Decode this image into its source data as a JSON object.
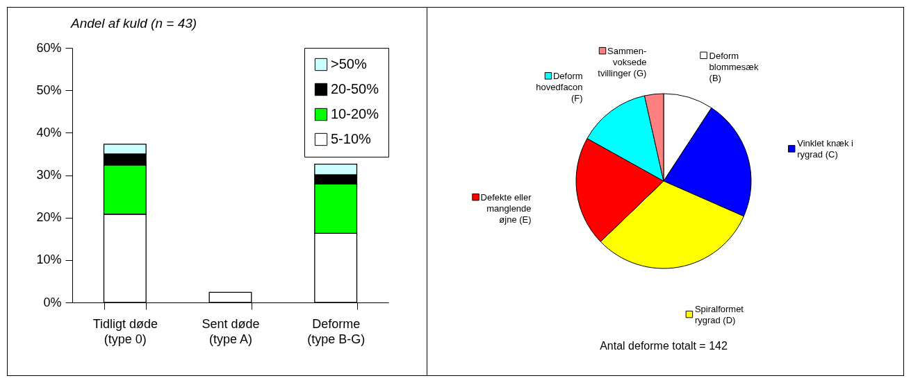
{
  "chart_data": [
    {
      "type": "bar",
      "title": "Andel af kuld (n = 43)",
      "stacked": true,
      "categories": [
        "Tidligt døde\n(type 0)",
        "Sent døde\n(type A)",
        "Deforme\n(type B-G)"
      ],
      "series": [
        {
          "name": "5-10%",
          "color": "#ffffff",
          "values": [
            20.8,
            2.4,
            16.3
          ]
        },
        {
          "name": "10-20%",
          "color": "#00ff00",
          "values": [
            11.6,
            null,
            11.6
          ]
        },
        {
          "name": "20-50%",
          "color": "#000000",
          "values": [
            2.6,
            null,
            2.2
          ]
        },
        {
          "name": ">50%",
          "color": "#ccffff",
          "values": [
            2.3,
            null,
            2.5
          ]
        }
      ],
      "ylim": [
        0,
        60
      ],
      "yticks": [
        {
          "value": 0,
          "label": "0%"
        },
        {
          "value": 10,
          "label": "10%"
        },
        {
          "value": 20,
          "label": "20%"
        },
        {
          "value": 30,
          "label": "30%"
        },
        {
          "value": 40,
          "label": "40%"
        },
        {
          "value": 50,
          "label": "50%"
        },
        {
          "value": 60,
          "label": "60%"
        }
      ],
      "grid": false,
      "legend": "top right"
    },
    {
      "type": "pie",
      "categories": [
        "Deform\nblommesæk\n(B)",
        "Vinklet knæk i\nrygrad (C)",
        "Spiralformet\nrygrad (D)",
        "Defekte eller\nmanglende\nøjne (E)",
        "Deform\nhovedfacon\n(F)",
        "Sammen-\nvoksede\ntvillinger (G)"
      ],
      "values": [
        9.2,
        22.4,
        31.2,
        20.3,
        13.4,
        3.5
      ],
      "colors": [
        "#ffffff",
        "#0000ff",
        "#ffff00",
        "#ff0000",
        "#00ffff",
        "#ff8080"
      ],
      "legend": "right",
      "annotations": [
        "Antal deforme totalt = 142"
      ]
    }
  ]
}
